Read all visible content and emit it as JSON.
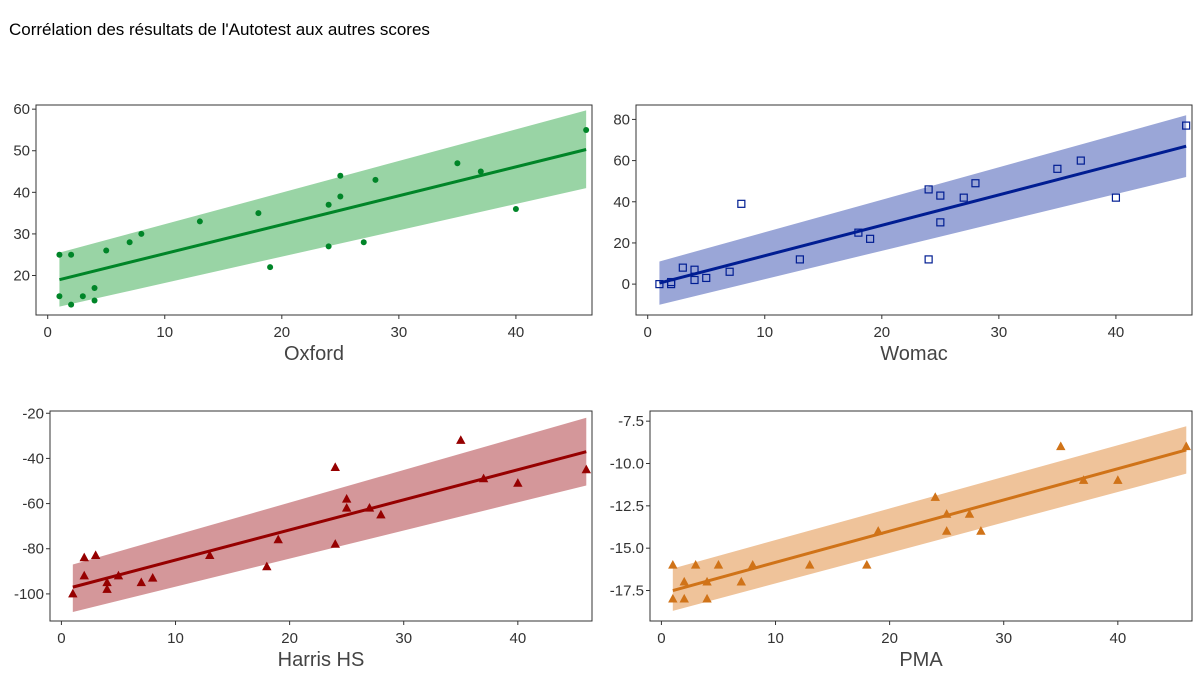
{
  "page": {
    "title": "Corrélation des résultats de l'Autotest aux autres scores"
  },
  "chart_data": [
    {
      "type": "scatter",
      "xlabel": "Oxford",
      "ylabel": "",
      "xlim": [
        -1,
        46.5
      ],
      "ylim": [
        10.5,
        61
      ],
      "xticks": [
        0,
        10,
        20,
        30,
        40
      ],
      "yticks": [
        20,
        30,
        40,
        50,
        60
      ],
      "ytick_labels": [
        "20",
        "30",
        "40",
        "50",
        "60"
      ],
      "marker": "circle",
      "color": "#008528",
      "band_color": "#99d4a5",
      "x": [
        1,
        1,
        2,
        2,
        3,
        4,
        4,
        5,
        7,
        8,
        13,
        18,
        19,
        24,
        24,
        25,
        25,
        27,
        28,
        35,
        37,
        40,
        46
      ],
      "y": [
        25,
        15,
        13,
        25,
        15,
        14,
        17,
        26,
        28,
        30,
        33,
        35,
        22,
        37,
        27,
        44,
        39,
        28,
        43,
        47,
        45,
        36,
        55
      ],
      "fit": {
        "x": [
          1,
          46
        ],
        "y": [
          19,
          50.3
        ]
      },
      "ci_lower": {
        "x": [
          1,
          46
        ],
        "y": [
          12.5,
          41
        ]
      },
      "ci_upper": {
        "x": [
          1,
          46
        ],
        "y": [
          25.5,
          59.7
        ]
      }
    },
    {
      "type": "scatter",
      "xlabel": "Womac",
      "ylabel": "",
      "xlim": [
        -1,
        46.5
      ],
      "ylim": [
        -15,
        87
      ],
      "xticks": [
        0,
        10,
        20,
        30,
        40
      ],
      "yticks": [
        0,
        20,
        40,
        60,
        80
      ],
      "ytick_labels": [
        "0",
        "20",
        "40",
        "60",
        "80"
      ],
      "marker": "square",
      "color": "#001d92",
      "band_color": "#9aa6d7",
      "x": [
        1,
        2,
        2,
        3,
        4,
        4,
        5,
        7,
        8,
        13,
        18,
        19,
        24,
        24,
        25,
        25,
        27,
        28,
        35,
        37,
        40,
        46
      ],
      "y": [
        0,
        0,
        1,
        8,
        7,
        2,
        3,
        6,
        39,
        12,
        25,
        22,
        12,
        46,
        43,
        30,
        42,
        49,
        56,
        60,
        42,
        77
      ],
      "fit": {
        "x": [
          1,
          46
        ],
        "y": [
          0.5,
          67
        ]
      },
      "ci_lower": {
        "x": [
          1,
          46
        ],
        "y": [
          -10,
          52
        ]
      },
      "ci_upper": {
        "x": [
          1,
          46
        ],
        "y": [
          11,
          82
        ]
      }
    },
    {
      "type": "scatter",
      "xlabel": "Harris HS",
      "ylabel": "",
      "xlim": [
        -1,
        46.5
      ],
      "ylim": [
        -112,
        -19
      ],
      "xticks": [
        0,
        10,
        20,
        30,
        40
      ],
      "yticks": [
        -100,
        -80,
        -60,
        -40,
        -20
      ],
      "ytick_labels": [
        "-100",
        "-80",
        "-60",
        "-40",
        "-20"
      ],
      "marker": "triangle",
      "color": "#960000",
      "band_color": "#d4979a",
      "x": [
        1,
        2,
        2,
        3,
        4,
        4,
        5,
        7,
        8,
        13,
        18,
        19,
        24,
        24,
        25,
        25,
        27,
        28,
        35,
        37,
        40,
        46
      ],
      "y": [
        -100,
        -92,
        -84,
        -83,
        -98,
        -95,
        -92,
        -95,
        -93,
        -83,
        -88,
        -76,
        -78,
        -44,
        -58,
        -62,
        -62,
        -65,
        -32,
        -49,
        -51,
        -45
      ],
      "fit": {
        "x": [
          1,
          46
        ],
        "y": [
          -97,
          -37
        ]
      },
      "ci_lower": {
        "x": [
          1,
          46
        ],
        "y": [
          -108,
          -52
        ]
      },
      "ci_upper": {
        "x": [
          1,
          46
        ],
        "y": [
          -87,
          -22
        ]
      }
    },
    {
      "type": "scatter",
      "xlabel": "PMA",
      "ylabel": "",
      "xlim": [
        -1,
        46.5
      ],
      "ylim": [
        -19.3,
        -6.9
      ],
      "xticks": [
        0,
        10,
        20,
        30,
        40
      ],
      "yticks": [
        -17.5,
        -15,
        -12.5,
        -10,
        -7.5
      ],
      "ytick_labels": [
        "-17.5",
        "-15.0",
        "-12.5",
        "-10.0",
        "-7.5"
      ],
      "marker": "triangle",
      "color": "#d07318",
      "band_color": "#efc39a",
      "x": [
        1,
        1,
        2,
        2,
        3,
        4,
        4,
        5,
        7,
        8,
        13,
        18,
        19,
        24,
        25,
        25,
        27,
        28,
        35,
        37,
        40,
        46
      ],
      "y": [
        -18,
        -16,
        -18,
        -17,
        -16,
        -18,
        -17,
        -16,
        -17,
        -16,
        -16,
        -16,
        -14,
        -12,
        -13,
        -14,
        -13,
        -14,
        -9,
        -11,
        -11,
        -9
      ],
      "fit": {
        "x": [
          1,
          46
        ],
        "y": [
          -17.5,
          -9.2
        ]
      },
      "ci_lower": {
        "x": [
          1,
          46
        ],
        "y": [
          -18.7,
          -10.6
        ]
      },
      "ci_upper": {
        "x": [
          1,
          46
        ],
        "y": [
          -16.2,
          -7.8
        ]
      }
    }
  ]
}
